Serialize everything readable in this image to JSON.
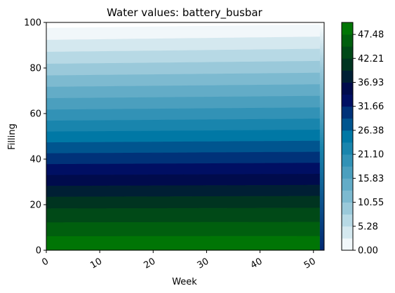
{
  "chart_data": {
    "type": "heatmap",
    "subtype": "filled-contour",
    "title": "Water values: battery_busbar",
    "xlabel": "Week",
    "ylabel": "Filling",
    "xlim": [
      0,
      52
    ],
    "ylim": [
      0,
      100
    ],
    "xticks": [
      0,
      10,
      20,
      30,
      40,
      50
    ],
    "yticks": [
      0,
      20,
      40,
      60,
      80,
      100
    ],
    "colorbar": {
      "colormap": "ocean_r",
      "range": [
        0,
        50.12
      ],
      "ticks": [
        "0.00",
        "5.28",
        "10.55",
        "15.83",
        "21.10",
        "26.38",
        "31.66",
        "36.93",
        "42.21",
        "47.48"
      ],
      "levels": 19,
      "level_step": 2.638
    },
    "field": {
      "description_values": "value at (week, filling): approximately linear in filling, from ~50 at filling 0 to ~0 at filling ~97-100",
      "rows": [
        {
          "filling": 0,
          "value": 50.1
        },
        {
          "filling": 20,
          "value": 41.5
        },
        {
          "filling": 40,
          "value": 30.5
        },
        {
          "filling": 60,
          "value": 19.5
        },
        {
          "filling": 80,
          "value": 9.0
        },
        {
          "filling": 98,
          "value": 0.0
        }
      ],
      "top_edge_filling_by_week": [
        {
          "week": 0,
          "filling": 97.5
        },
        {
          "week": 51,
          "filling": 99.0
        }
      ],
      "end_week_drop": {
        "week": 51.2,
        "value_near_top": 0.0
      }
    }
  }
}
